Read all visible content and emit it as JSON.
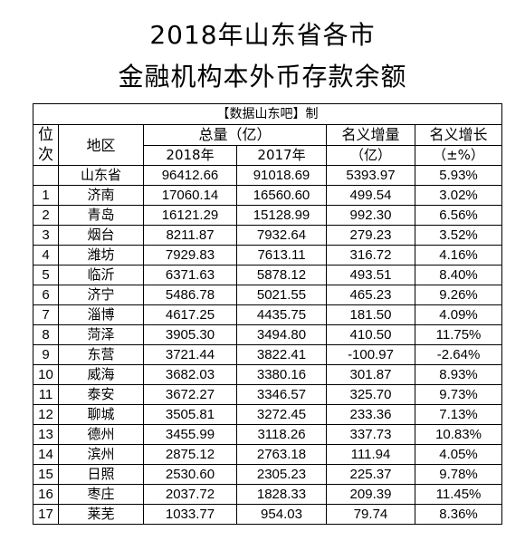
{
  "title": {
    "line1": "2018年山东省各市",
    "line2": "金融机构本外币存款余额"
  },
  "source": "【数据山东吧】制",
  "headers": {
    "rank_top": "位",
    "rank_bottom": "次",
    "region": "地区",
    "total": "总量（亿）",
    "y2018": "2018年",
    "y2017": "2017年",
    "increase": "名义增量",
    "increase_unit": "（亿）",
    "growth": "名义增长",
    "growth_unit": "（±%）"
  },
  "total_row": {
    "region": "山东省",
    "v2018": "96412.66",
    "v2017": "91018.69",
    "increase": "5393.97",
    "growth": "5.93%"
  },
  "rows": [
    {
      "rank": "1",
      "region": "济南",
      "v2018": "17060.14",
      "v2017": "16560.60",
      "increase": "499.54",
      "growth": "3.02%"
    },
    {
      "rank": "2",
      "region": "青岛",
      "v2018": "16121.29",
      "v2017": "15128.99",
      "increase": "992.30",
      "growth": "6.56%"
    },
    {
      "rank": "3",
      "region": "烟台",
      "v2018": "8211.87",
      "v2017": "7932.64",
      "increase": "279.23",
      "growth": "3.52%"
    },
    {
      "rank": "4",
      "region": "潍坊",
      "v2018": "7929.83",
      "v2017": "7613.11",
      "increase": "316.72",
      "growth": "4.16%"
    },
    {
      "rank": "5",
      "region": "临沂",
      "v2018": "6371.63",
      "v2017": "5878.12",
      "increase": "493.51",
      "growth": "8.40%"
    },
    {
      "rank": "6",
      "region": "济宁",
      "v2018": "5486.78",
      "v2017": "5021.55",
      "increase": "465.23",
      "growth": "9.26%"
    },
    {
      "rank": "7",
      "region": "淄博",
      "v2018": "4617.25",
      "v2017": "4435.75",
      "increase": "181.50",
      "growth": "4.09%"
    },
    {
      "rank": "8",
      "region": "菏泽",
      "v2018": "3905.30",
      "v2017": "3494.80",
      "increase": "410.50",
      "growth": "11.75%"
    },
    {
      "rank": "9",
      "region": "东营",
      "v2018": "3721.44",
      "v2017": "3822.41",
      "increase": "-100.97",
      "growth": "-2.64%"
    },
    {
      "rank": "10",
      "region": "威海",
      "v2018": "3682.03",
      "v2017": "3380.16",
      "increase": "301.87",
      "growth": "8.93%"
    },
    {
      "rank": "11",
      "region": "泰安",
      "v2018": "3672.27",
      "v2017": "3346.57",
      "increase": "325.70",
      "growth": "9.73%"
    },
    {
      "rank": "12",
      "region": "聊城",
      "v2018": "3505.81",
      "v2017": "3272.45",
      "increase": "233.36",
      "growth": "7.13%"
    },
    {
      "rank": "13",
      "region": "德州",
      "v2018": "3455.99",
      "v2017": "3118.26",
      "increase": "337.73",
      "growth": "10.83%"
    },
    {
      "rank": "14",
      "region": "滨州",
      "v2018": "2875.12",
      "v2017": "2763.18",
      "increase": "111.94",
      "growth": "4.05%"
    },
    {
      "rank": "15",
      "region": "日照",
      "v2018": "2530.60",
      "v2017": "2305.23",
      "increase": "225.37",
      "growth": "9.78%"
    },
    {
      "rank": "16",
      "region": "枣庄",
      "v2018": "2037.72",
      "v2017": "1828.33",
      "increase": "209.39",
      "growth": "11.45%"
    },
    {
      "rank": "17",
      "region": "莱芜",
      "v2018": "1033.77",
      "v2017": "954.03",
      "increase": "79.74",
      "growth": "8.36%"
    }
  ]
}
